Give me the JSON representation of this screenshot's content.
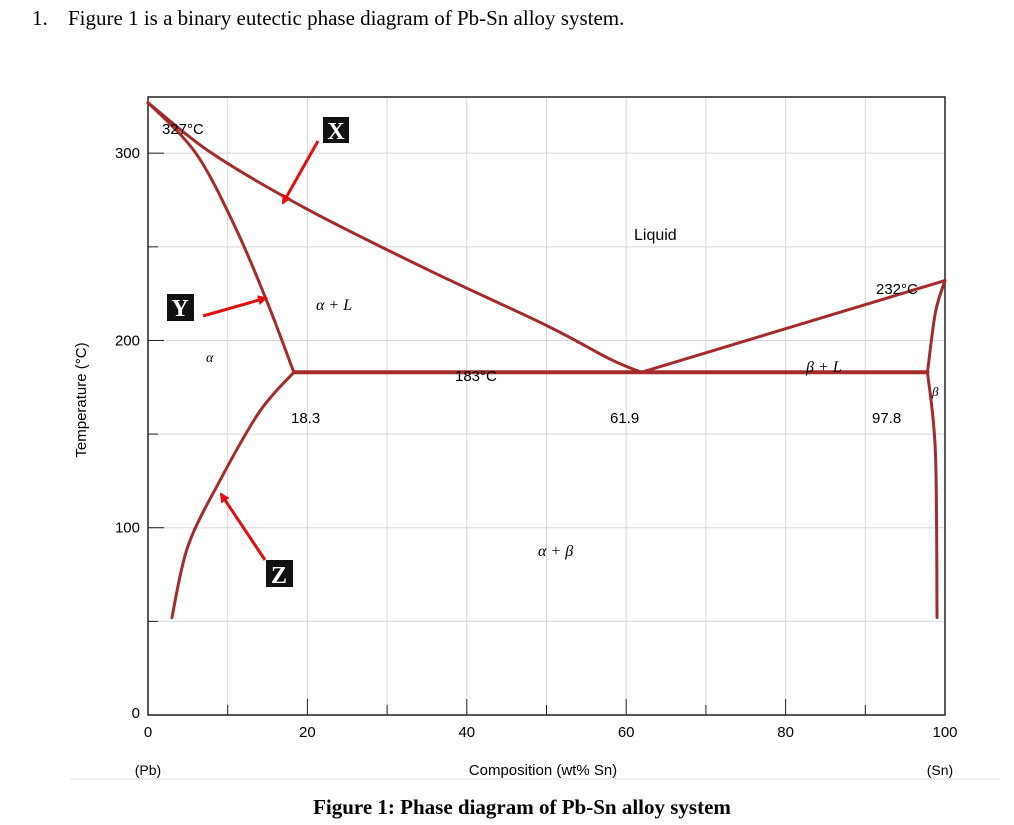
{
  "question": {
    "number": "1.",
    "text": "Figure 1 is a binary eutectic phase diagram of Pb-Sn alloy system."
  },
  "caption": "Figure 1: Phase diagram of Pb-Sn alloy system",
  "chart_data": {
    "type": "phase-diagram",
    "xlabel": "Composition (wt% Sn)",
    "ylabel": "Temperature (°C)",
    "xlim": [
      0,
      100
    ],
    "ylim": [
      0,
      330
    ],
    "x_ticks": [
      "0",
      "20",
      "40",
      "60",
      "80",
      "100"
    ],
    "y_ticks": [
      "0",
      "100",
      "200",
      "300"
    ],
    "x_end_labels": {
      "left": "(Pb)",
      "right": "(Sn)"
    },
    "colors": {
      "phase_lines": "#a52a2a",
      "arrows": "#e01010",
      "grid": "#d8d8d8"
    },
    "annotations": {
      "pb_melting": "327°C",
      "sn_melting": "232°C",
      "eutectic_temp": "183°C",
      "alpha_max": "18.3",
      "eutectic_comp": "61.9",
      "beta_max": "97.8"
    },
    "regions": {
      "liquid": "Liquid",
      "alpha_plus_liquid": "α + L",
      "alpha": "α",
      "beta_plus_liquid": "β + L",
      "beta": "β",
      "alpha_plus_beta": "α + β"
    },
    "markers": [
      {
        "label": "X",
        "points_to": "liquidus (Pb side)"
      },
      {
        "label": "Y",
        "points_to": "solidus (α)"
      },
      {
        "label": "Z",
        "points_to": "solvus (α)"
      }
    ],
    "points": {
      "pb_melting": [
        0,
        327
      ],
      "sn_melting": [
        100,
        232
      ],
      "eutectic": [
        61.9,
        183
      ],
      "alpha_max": [
        18.3,
        183
      ],
      "beta_max": [
        97.8,
        183
      ]
    },
    "curves": {
      "liquidus_pb": [
        [
          0,
          327
        ],
        [
          8,
          300
        ],
        [
          20,
          270
        ],
        [
          35,
          238
        ],
        [
          50,
          208
        ],
        [
          58,
          190
        ],
        [
          61.9,
          183
        ]
      ],
      "liquidus_sn": [
        [
          61.9,
          183
        ],
        [
          100,
          232
        ]
      ],
      "solidus_alpha": [
        [
          0,
          327
        ],
        [
          6,
          300
        ],
        [
          11,
          260
        ],
        [
          15,
          220
        ],
        [
          18.3,
          183
        ]
      ],
      "solvus_alpha": [
        [
          18.3,
          183
        ],
        [
          14,
          162
        ],
        [
          9,
          125
        ],
        [
          5,
          90
        ],
        [
          3,
          52
        ]
      ],
      "eutectic_line": [
        [
          18.3,
          183
        ],
        [
          97.8,
          183
        ]
      ],
      "solidus_beta": [
        [
          97.8,
          183
        ],
        [
          98.8,
          215
        ],
        [
          100,
          232
        ]
      ],
      "solvus_beta": [
        [
          97.8,
          183
        ],
        [
          98.8,
          140
        ],
        [
          99,
          52
        ]
      ]
    }
  }
}
